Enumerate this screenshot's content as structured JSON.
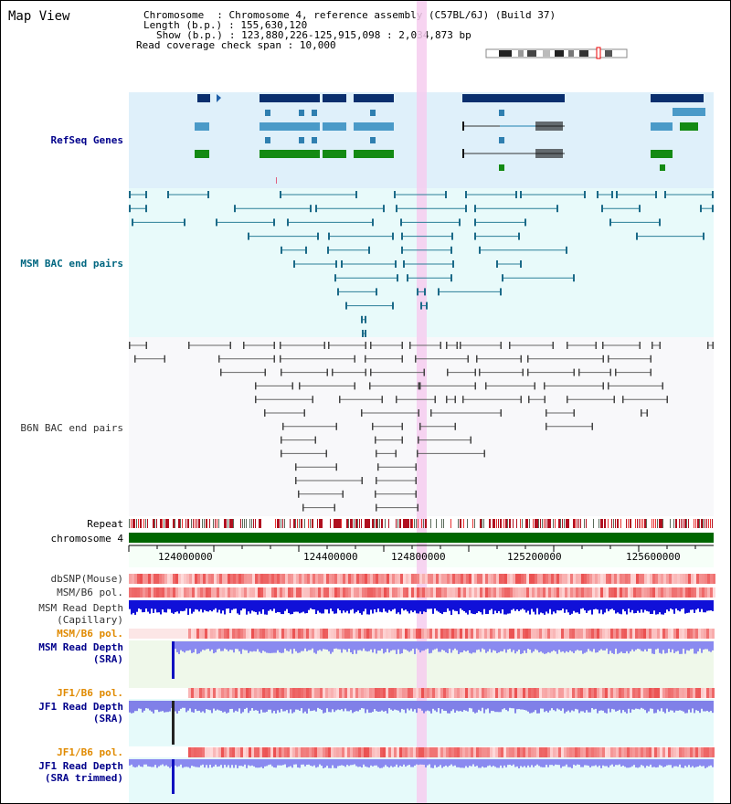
{
  "view_title": "Map View",
  "header": {
    "chromosome_key": "Chromosome",
    "chromosome_val": "Chromosome 4, reference assembly (C57BL/6J) (Build 37)",
    "length_key": "Length (b.p.)",
    "length_val": "155,630,120",
    "show_key": "Show (b.p.)",
    "show_val": "123,880,226-125,915,098 : 2,034,873 bp",
    "coverage_key": "Read coverage check span",
    "coverage_val": "10,000"
  },
  "tracks": {
    "refseq": "RefSeq Genes",
    "msm_bac": "MSM BAC end pairs",
    "b6n_bac": "B6N BAC end pairs",
    "repeat": "Repeat",
    "chromosome": "chromosome 4",
    "dbsnp": "dbSNP(Mouse)",
    "msm_b6_pol_1": "MSM/B6 pol.",
    "msm_read_depth_cap_1": "MSM Read Depth",
    "msm_read_depth_cap_2": "(Capillary)",
    "msm_b6_pol_2": "MSM/B6 pol.",
    "msm_read_depth_sra_1": "MSM Read Depth",
    "msm_read_depth_sra_2": "(SRA)",
    "jf1_b6_pol_1": "JF1/B6 pol.",
    "jf1_read_depth_sra_1": "JF1 Read Depth",
    "jf1_read_depth_sra_2": "(SRA)",
    "jf1_b6_pol_2": "JF1/B6 pol.",
    "jf1_read_depth_trim_1": "JF1 Read Depth",
    "jf1_read_depth_trim_2": "(SRA trimmed)"
  },
  "axis": {
    "ticks": [
      "124000000",
      "124400000",
      "124800000",
      "125200000",
      "125600000"
    ]
  },
  "colors": {
    "refseq_bg": "#dff0fa",
    "msm_bac_bg": "#e8fafa",
    "b6n_bg": "#f8f8fa",
    "highlight": "#f6cdee",
    "chrom_bar": "#006600",
    "label_blue": "#00008b",
    "label_teal": "#006680",
    "label_orange": "#e08a00",
    "depth_blue": "#0000e0",
    "sra_blue": "#8080f0"
  }
}
